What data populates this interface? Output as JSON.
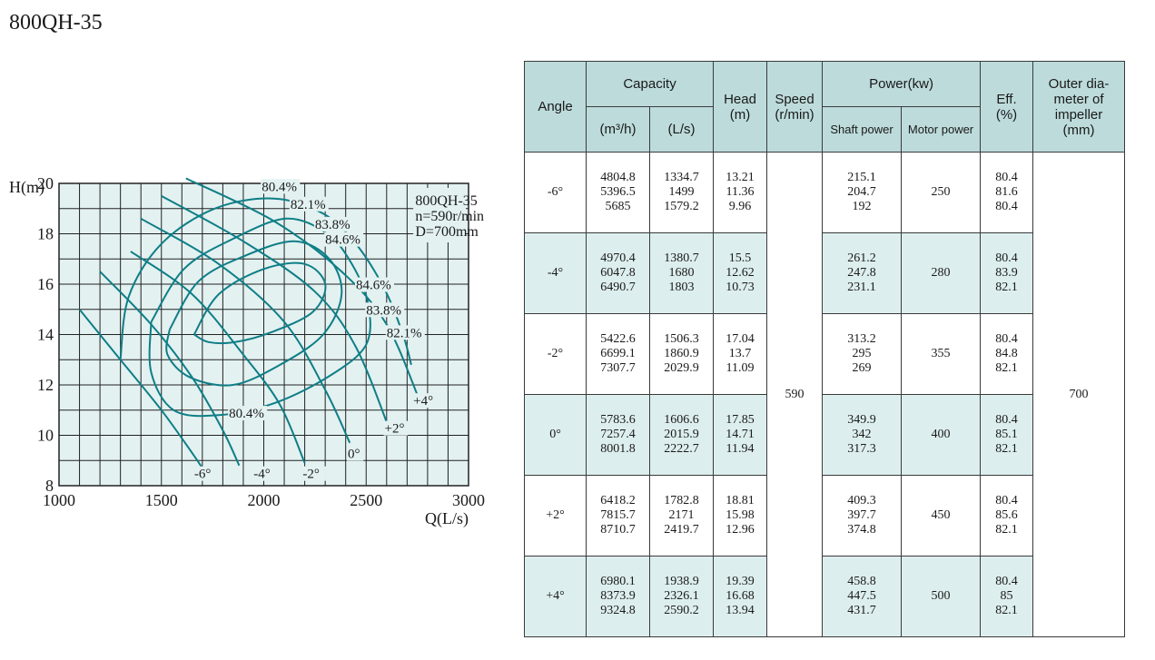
{
  "title": "800QH-35",
  "chart_data": {
    "type": "line",
    "xlabel": "Q(L/s)",
    "ylabel": "H(m)",
    "xlim": [
      1000,
      3000
    ],
    "ylim": [
      8,
      20
    ],
    "xticks": [
      "1000",
      "1500",
      "2000",
      "2500",
      "3000"
    ],
    "yticks": [
      "8",
      "10",
      "12",
      "14",
      "16",
      "18",
      "20"
    ],
    "grid": true,
    "info_box": [
      "800QH-35",
      "n=590r/min",
      "D=700mm"
    ],
    "series": [
      {
        "name": "-6°",
        "points": [
          [
            1100,
            15.0
          ],
          [
            1300,
            13.0
          ],
          [
            1500,
            11.0
          ],
          [
            1650,
            9.3
          ],
          [
            1700,
            8.7
          ]
        ]
      },
      {
        "name": "-4°",
        "points": [
          [
            1200,
            16.5
          ],
          [
            1450,
            14.4
          ],
          [
            1650,
            12.3
          ],
          [
            1800,
            10.2
          ],
          [
            1880,
            8.8
          ]
        ]
      },
      {
        "name": "-2°",
        "points": [
          [
            1350,
            17.3
          ],
          [
            1650,
            15.6
          ],
          [
            1900,
            13.2
          ],
          [
            2080,
            11.2
          ],
          [
            2200,
            8.9
          ]
        ]
      },
      {
        "name": "0°",
        "points": [
          [
            1400,
            18.6
          ],
          [
            1780,
            16.8
          ],
          [
            2100,
            14.5
          ],
          [
            2300,
            11.8
          ],
          [
            2420,
            9.7
          ]
        ]
      },
      {
        "name": "+2°",
        "points": [
          [
            1500,
            19.5
          ],
          [
            1900,
            17.7
          ],
          [
            2250,
            15.7
          ],
          [
            2450,
            13.5
          ],
          [
            2620,
            10.1
          ]
        ]
      },
      {
        "name": "+4°",
        "points": [
          [
            1620,
            20.2
          ],
          [
            2050,
            18.5
          ],
          [
            2380,
            16.5
          ],
          [
            2600,
            14.4
          ],
          [
            2760,
            11.4
          ]
        ]
      }
    ],
    "efficiency_contours": [
      {
        "label": "80.4%",
        "points": [
          [
            1300,
            13.0
          ],
          [
            1340,
            15.5
          ],
          [
            1500,
            17.6
          ],
          [
            1760,
            19.0
          ],
          [
            2050,
            19.4
          ],
          [
            2290,
            18.8
          ],
          [
            2450,
            17.6
          ],
          [
            2590,
            15.8
          ],
          [
            2680,
            14.0
          ],
          [
            2720,
            12.8
          ]
        ]
      },
      {
        "label": "82.1%",
        "points": [
          [
            1450,
            14.5
          ],
          [
            1610,
            16.6
          ],
          [
            1850,
            17.8
          ],
          [
            2110,
            18.6
          ],
          [
            2310,
            18.0
          ],
          [
            2430,
            16.8
          ],
          [
            2510,
            15.2
          ],
          [
            2500,
            13.6
          ],
          [
            2330,
            12.4
          ],
          [
            2060,
            11.3
          ],
          [
            1780,
            10.8
          ],
          [
            1560,
            11.0
          ],
          [
            1450,
            12.5
          ],
          [
            1450,
            14.5
          ]
        ]
      },
      {
        "label": "83.8%",
        "points": [
          [
            1540,
            14.2
          ],
          [
            1680,
            16.1
          ],
          [
            1900,
            17.1
          ],
          [
            2150,
            17.7
          ],
          [
            2320,
            17.0
          ],
          [
            2380,
            15.6
          ],
          [
            2290,
            14.0
          ],
          [
            2080,
            12.8
          ],
          [
            1850,
            12.0
          ],
          [
            1640,
            12.3
          ],
          [
            1530,
            13.2
          ],
          [
            1540,
            14.2
          ]
        ]
      },
      {
        "label": "84.6%",
        "points": [
          [
            1660,
            14.0
          ],
          [
            1780,
            15.6
          ],
          [
            2000,
            16.6
          ],
          [
            2200,
            16.8
          ],
          [
            2300,
            16.0
          ],
          [
            2240,
            14.9
          ],
          [
            2040,
            14.1
          ],
          [
            1860,
            13.7
          ],
          [
            1730,
            13.7
          ],
          [
            1660,
            14.0
          ]
        ]
      }
    ],
    "annotations": [
      "80.4%",
      "82.1%",
      "83.8%",
      "84.6%",
      "84.6%",
      "83.8%",
      "82.1%",
      "80.4%",
      "+4°",
      "+2°",
      "0°",
      "-2°",
      "-4°",
      "-6°"
    ]
  },
  "table": {
    "headers": {
      "angle": "Angle",
      "capacity": "Capacity",
      "capacity_m3": "(m³/h)",
      "capacity_ls": "(L/s)",
      "head": "Head",
      "head_unit": "(m)",
      "speed": "Speed",
      "speed_unit": "(r/min)",
      "power": "Power(kw)",
      "shaft_power": "Shaft power",
      "motor_power": "Motor power",
      "eff": "Eff.",
      "eff_unit": "(%)",
      "impeller_1": "Outer dia-",
      "impeller_2": "meter of",
      "impeller_3": "impeller",
      "impeller_4": "(mm)"
    },
    "speed": "590",
    "impeller": "700",
    "rows": [
      {
        "angle": "-6°",
        "m3h": [
          "4804.8",
          "5396.5",
          "5685"
        ],
        "ls": [
          "1334.7",
          "1499",
          "1579.2"
        ],
        "head": [
          "13.21",
          "11.36",
          "9.96"
        ],
        "shaft": [
          "215.1",
          "204.7",
          "192"
        ],
        "motor": "250",
        "eff": [
          "80.4",
          "81.6",
          "80.4"
        ]
      },
      {
        "angle": "-4°",
        "m3h": [
          "4970.4",
          "6047.8",
          "6490.7"
        ],
        "ls": [
          "1380.7",
          "1680",
          "1803"
        ],
        "head": [
          "15.5",
          "12.62",
          "10.73"
        ],
        "shaft": [
          "261.2",
          "247.8",
          "231.1"
        ],
        "motor": "280",
        "eff": [
          "80.4",
          "83.9",
          "82.1"
        ]
      },
      {
        "angle": "-2°",
        "m3h": [
          "5422.6",
          "6699.1",
          "7307.7"
        ],
        "ls": [
          "1506.3",
          "1860.9",
          "2029.9"
        ],
        "head": [
          "17.04",
          "13.7",
          "11.09"
        ],
        "shaft": [
          "313.2",
          "295",
          "269"
        ],
        "motor": "355",
        "eff": [
          "80.4",
          "84.8",
          "82.1"
        ]
      },
      {
        "angle": "0°",
        "m3h": [
          "5783.6",
          "7257.4",
          "8001.8"
        ],
        "ls": [
          "1606.6",
          "2015.9",
          "2222.7"
        ],
        "head": [
          "17.85",
          "14.71",
          "11.94"
        ],
        "shaft": [
          "349.9",
          "342",
          "317.3"
        ],
        "motor": "400",
        "eff": [
          "80.4",
          "85.1",
          "82.1"
        ]
      },
      {
        "angle": "+2°",
        "m3h": [
          "6418.2",
          "7815.7",
          "8710.7"
        ],
        "ls": [
          "1782.8",
          "2171",
          "2419.7"
        ],
        "head": [
          "18.81",
          "15.98",
          "12.96"
        ],
        "shaft": [
          "409.3",
          "397.7",
          "374.8"
        ],
        "motor": "450",
        "eff": [
          "80.4",
          "85.6",
          "82.1"
        ]
      },
      {
        "angle": "+4°",
        "m3h": [
          "6980.1",
          "8373.9",
          "9324.8"
        ],
        "ls": [
          "1938.9",
          "2326.1",
          "2590.2"
        ],
        "head": [
          "19.39",
          "16.68",
          "13.94"
        ],
        "shaft": [
          "458.8",
          "447.5",
          "431.7"
        ],
        "motor": "500",
        "eff": [
          "80.4",
          "85",
          "82.1"
        ]
      }
    ]
  },
  "colors": {
    "curve": "#0e7e86",
    "grid": "#222222",
    "plot_bg": "#e3f1f1",
    "header_bg": "#bddbdb",
    "band_bg": "#ddeeee"
  }
}
